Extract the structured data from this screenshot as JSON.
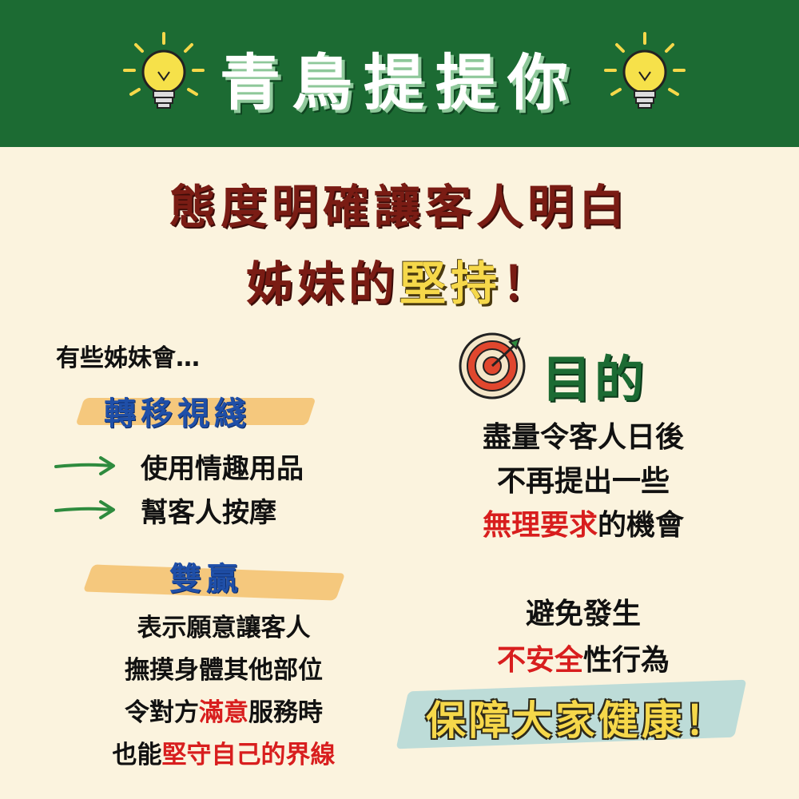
{
  "header": {
    "title": "青鳥提提你"
  },
  "headline": {
    "line1": "態度明確讓客人明白",
    "line2_prefix": "姊妹的",
    "line2_highlight": "堅持",
    "line2_suffix": "！"
  },
  "left": {
    "intro": "有些姊妹會…",
    "section1_title": "轉移視綫",
    "items": [
      "使用情趣用品",
      "幫客人按摩"
    ],
    "section2_title": "雙贏",
    "win_line1": "表示願意讓客人",
    "win_line2": "撫摸身體其他部位",
    "win_line3_a": "令對方",
    "win_line3_red": "滿意",
    "win_line3_b": "服務時",
    "win_line4_a": "也能",
    "win_line4_red": "堅守自己的界線"
  },
  "right": {
    "goal_title": "目的",
    "goal_line1": "盡量令客人日後",
    "goal_line2": "不再提出一些",
    "goal_line3_red": "無理要求",
    "goal_line3_b": "的機會",
    "avoid_line1": "避免發生",
    "avoid_line2_red": "不安全",
    "avoid_line2_b": "性行為",
    "final": "保障大家健康！"
  },
  "colors": {
    "header_bg": "#1c6b33",
    "page_bg": "#fbf3de",
    "headline": "#7a1c14",
    "highlight_yellow": "#f6d84a",
    "section_blue": "#1f4fa8",
    "emphasis_red": "#d81e1e",
    "arrow_green": "#2e8b3e"
  },
  "icons": [
    "lightbulb-icon",
    "lightbulb-icon",
    "arrow-right-icon",
    "arrow-right-icon",
    "target-icon"
  ]
}
